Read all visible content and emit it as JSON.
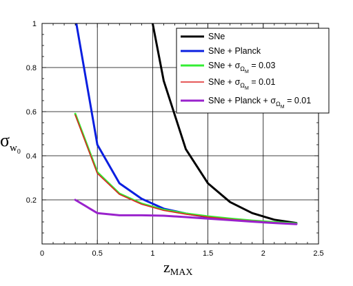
{
  "chart_data": {
    "type": "line",
    "xlabel": {
      "main": "z",
      "sub": "MAX"
    },
    "ylabel": {
      "main": "σ",
      "sub": "w",
      "subsub": "0"
    },
    "xlim": [
      0,
      2.5
    ],
    "ylim": [
      0,
      1
    ],
    "x_ticks": [
      0,
      0.5,
      1,
      1.5,
      2,
      2.5
    ],
    "x_tick_labels": [
      "0",
      "0.5",
      "1",
      "1.5",
      "2",
      "2.5"
    ],
    "y_ticks": [
      0.2,
      0.4,
      0.6,
      0.8,
      1
    ],
    "y_tick_labels": [
      "0.2",
      "0.4",
      "0.6",
      "0.8",
      "1"
    ],
    "grid": true,
    "legend_position": "top-right",
    "series": [
      {
        "name": "SNe",
        "legend": {
          "pre": "SNe",
          "sigma": "",
          "sub": "",
          "subsub": "",
          "post": ""
        },
        "color": "#000000",
        "x": [
          1.0,
          1.1,
          1.3,
          1.5,
          1.7,
          1.9,
          2.1,
          2.3
        ],
        "y": [
          1.0,
          0.74,
          0.43,
          0.275,
          0.19,
          0.14,
          0.11,
          0.095
        ]
      },
      {
        "name": "SNe + Planck",
        "legend": {
          "pre": "SNe + Planck",
          "sigma": "",
          "sub": "",
          "subsub": "",
          "post": ""
        },
        "color": "#0a1fe0",
        "x": [
          0.31,
          0.5,
          0.7,
          0.9,
          1.1,
          1.3,
          1.5,
          1.7,
          1.9,
          2.1,
          2.3
        ],
        "y": [
          1.0,
          0.45,
          0.275,
          0.205,
          0.16,
          0.138,
          0.122,
          0.112,
          0.104,
          0.098,
          0.093
        ]
      },
      {
        "name": "SNe + σΩM = 0.03",
        "legend": {
          "pre": "SNe + ",
          "sigma": "σ",
          "sub": "Ω",
          "subsub": "M",
          "post": " = 0.03"
        },
        "color": "#33ee33",
        "x": [
          0.3,
          0.5,
          0.7,
          0.9,
          1.1,
          1.3,
          1.5,
          1.7,
          1.9,
          2.1,
          2.3
        ],
        "y": [
          0.59,
          0.325,
          0.228,
          0.183,
          0.155,
          0.138,
          0.125,
          0.115,
          0.106,
          0.099,
          0.093
        ]
      },
      {
        "name": "SNe + σΩM = 0.01",
        "legend": {
          "pre": "SNe + ",
          "sigma": "σ",
          "sub": "Ω",
          "subsub": "M",
          "post": " = 0.01"
        },
        "color": "#dd2222",
        "x": [
          0.3,
          0.5,
          0.7,
          0.9,
          1.1,
          1.3,
          1.5,
          1.7,
          1.9,
          2.1,
          2.3
        ],
        "y": [
          0.585,
          0.32,
          0.225,
          0.18,
          0.152,
          0.135,
          0.122,
          0.112,
          0.104,
          0.097,
          0.092
        ]
      },
      {
        "name": "SNe + Planck + σΩM = 0.01",
        "legend": {
          "pre": "SNe + Planck + ",
          "sigma": "σ",
          "sub": "Ω",
          "subsub": "M",
          "post": " = 0.01"
        },
        "color": "#9922cc",
        "x": [
          0.3,
          0.5,
          0.7,
          0.9,
          1.1,
          1.3,
          1.5,
          1.7,
          1.9,
          2.1,
          2.3
        ],
        "y": [
          0.2,
          0.14,
          0.13,
          0.13,
          0.128,
          0.122,
          0.115,
          0.108,
          0.101,
          0.095,
          0.09
        ]
      }
    ]
  }
}
